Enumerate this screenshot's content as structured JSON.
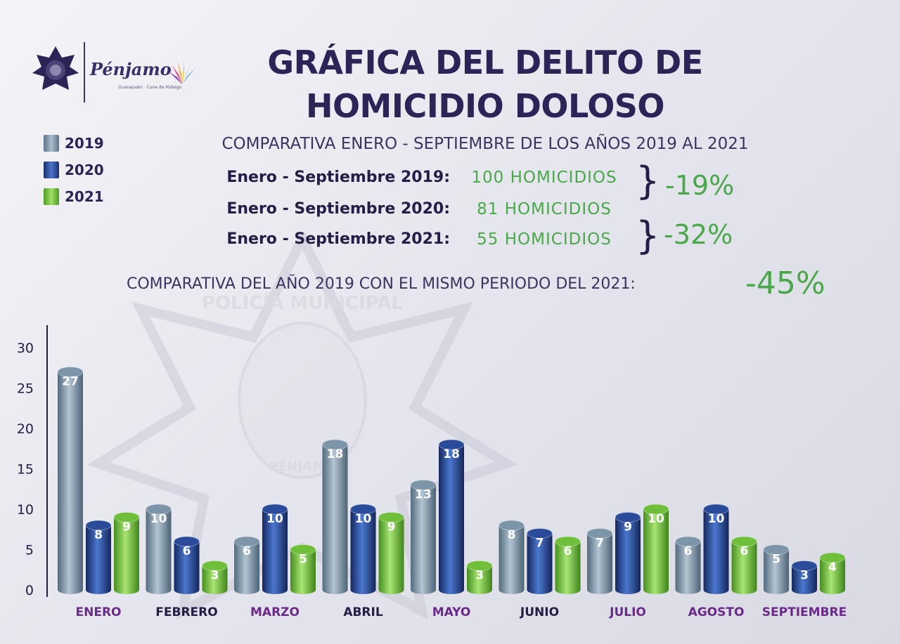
{
  "header": {
    "title_line1": "GRÁFICA DEL DELITO DE",
    "title_line2": "HOMICIDIO DOLOSO",
    "logo_text": "Pénjamo",
    "logo_sub": "Guanajuato · Cuna de Hidalgo"
  },
  "legend": [
    {
      "label": "2019",
      "color": "#7d95a8"
    },
    {
      "label": "2020",
      "color": "#2a4a9a"
    },
    {
      "label": "2021",
      "color": "#6fbf3a"
    }
  ],
  "summary": {
    "subtitle": "COMPARATIVA ENERO - SEPTIEMBRE DE LOS AÑOS 2019 AL 2021",
    "rows": [
      {
        "label": "Enero - Septiembre 2019:",
        "value": "100 HOMICIDIOS"
      },
      {
        "label": "Enero - Septiembre 2020:",
        "value": "81 HOMICIDIOS"
      },
      {
        "label": "Enero - Septiembre  2021:",
        "value": "55 HOMICIDIOS"
      }
    ],
    "change_2019_2020": "-19%",
    "change_2020_2021": "-32%",
    "comparison_label": "COMPARATIVA DEL AÑO 2019 CON EL MISMO PERIODO DEL 2021:",
    "comparison_value": "-45%"
  },
  "watermark": {
    "text_top": "POLICÍA MUNICIPAL",
    "text_bottom": "PÉNJAMO"
  },
  "chart_data": {
    "type": "bar",
    "categories": [
      "ENERO",
      "FEBRERO",
      "MARZO",
      "ABRIL",
      "MAYO",
      "JUNIO",
      "JULIO",
      "AGOSTO",
      "SEPTIEMBRE"
    ],
    "category_colors": [
      "#6a2a8a",
      "#231e45",
      "#6a2a8a",
      "#231e45",
      "#6a2a8a",
      "#231e45",
      "#6a2a8a",
      "#6a2a8a",
      "#6a2a8a"
    ],
    "series": [
      {
        "name": "2019",
        "values": [
          27,
          10,
          6,
          18,
          13,
          8,
          7,
          6,
          5
        ],
        "color": "#7d95a8"
      },
      {
        "name": "2020",
        "values": [
          8,
          6,
          10,
          10,
          18,
          7,
          9,
          10,
          3
        ],
        "color": "#2a4a9a"
      },
      {
        "name": "2021",
        "values": [
          9,
          3,
          5,
          9,
          3,
          6,
          10,
          6,
          4
        ],
        "color": "#6fbf3a"
      }
    ],
    "yticks": [
      0,
      5,
      10,
      15,
      20,
      25,
      30
    ],
    "ylim": [
      0,
      30
    ],
    "legend_position": "top-left"
  }
}
